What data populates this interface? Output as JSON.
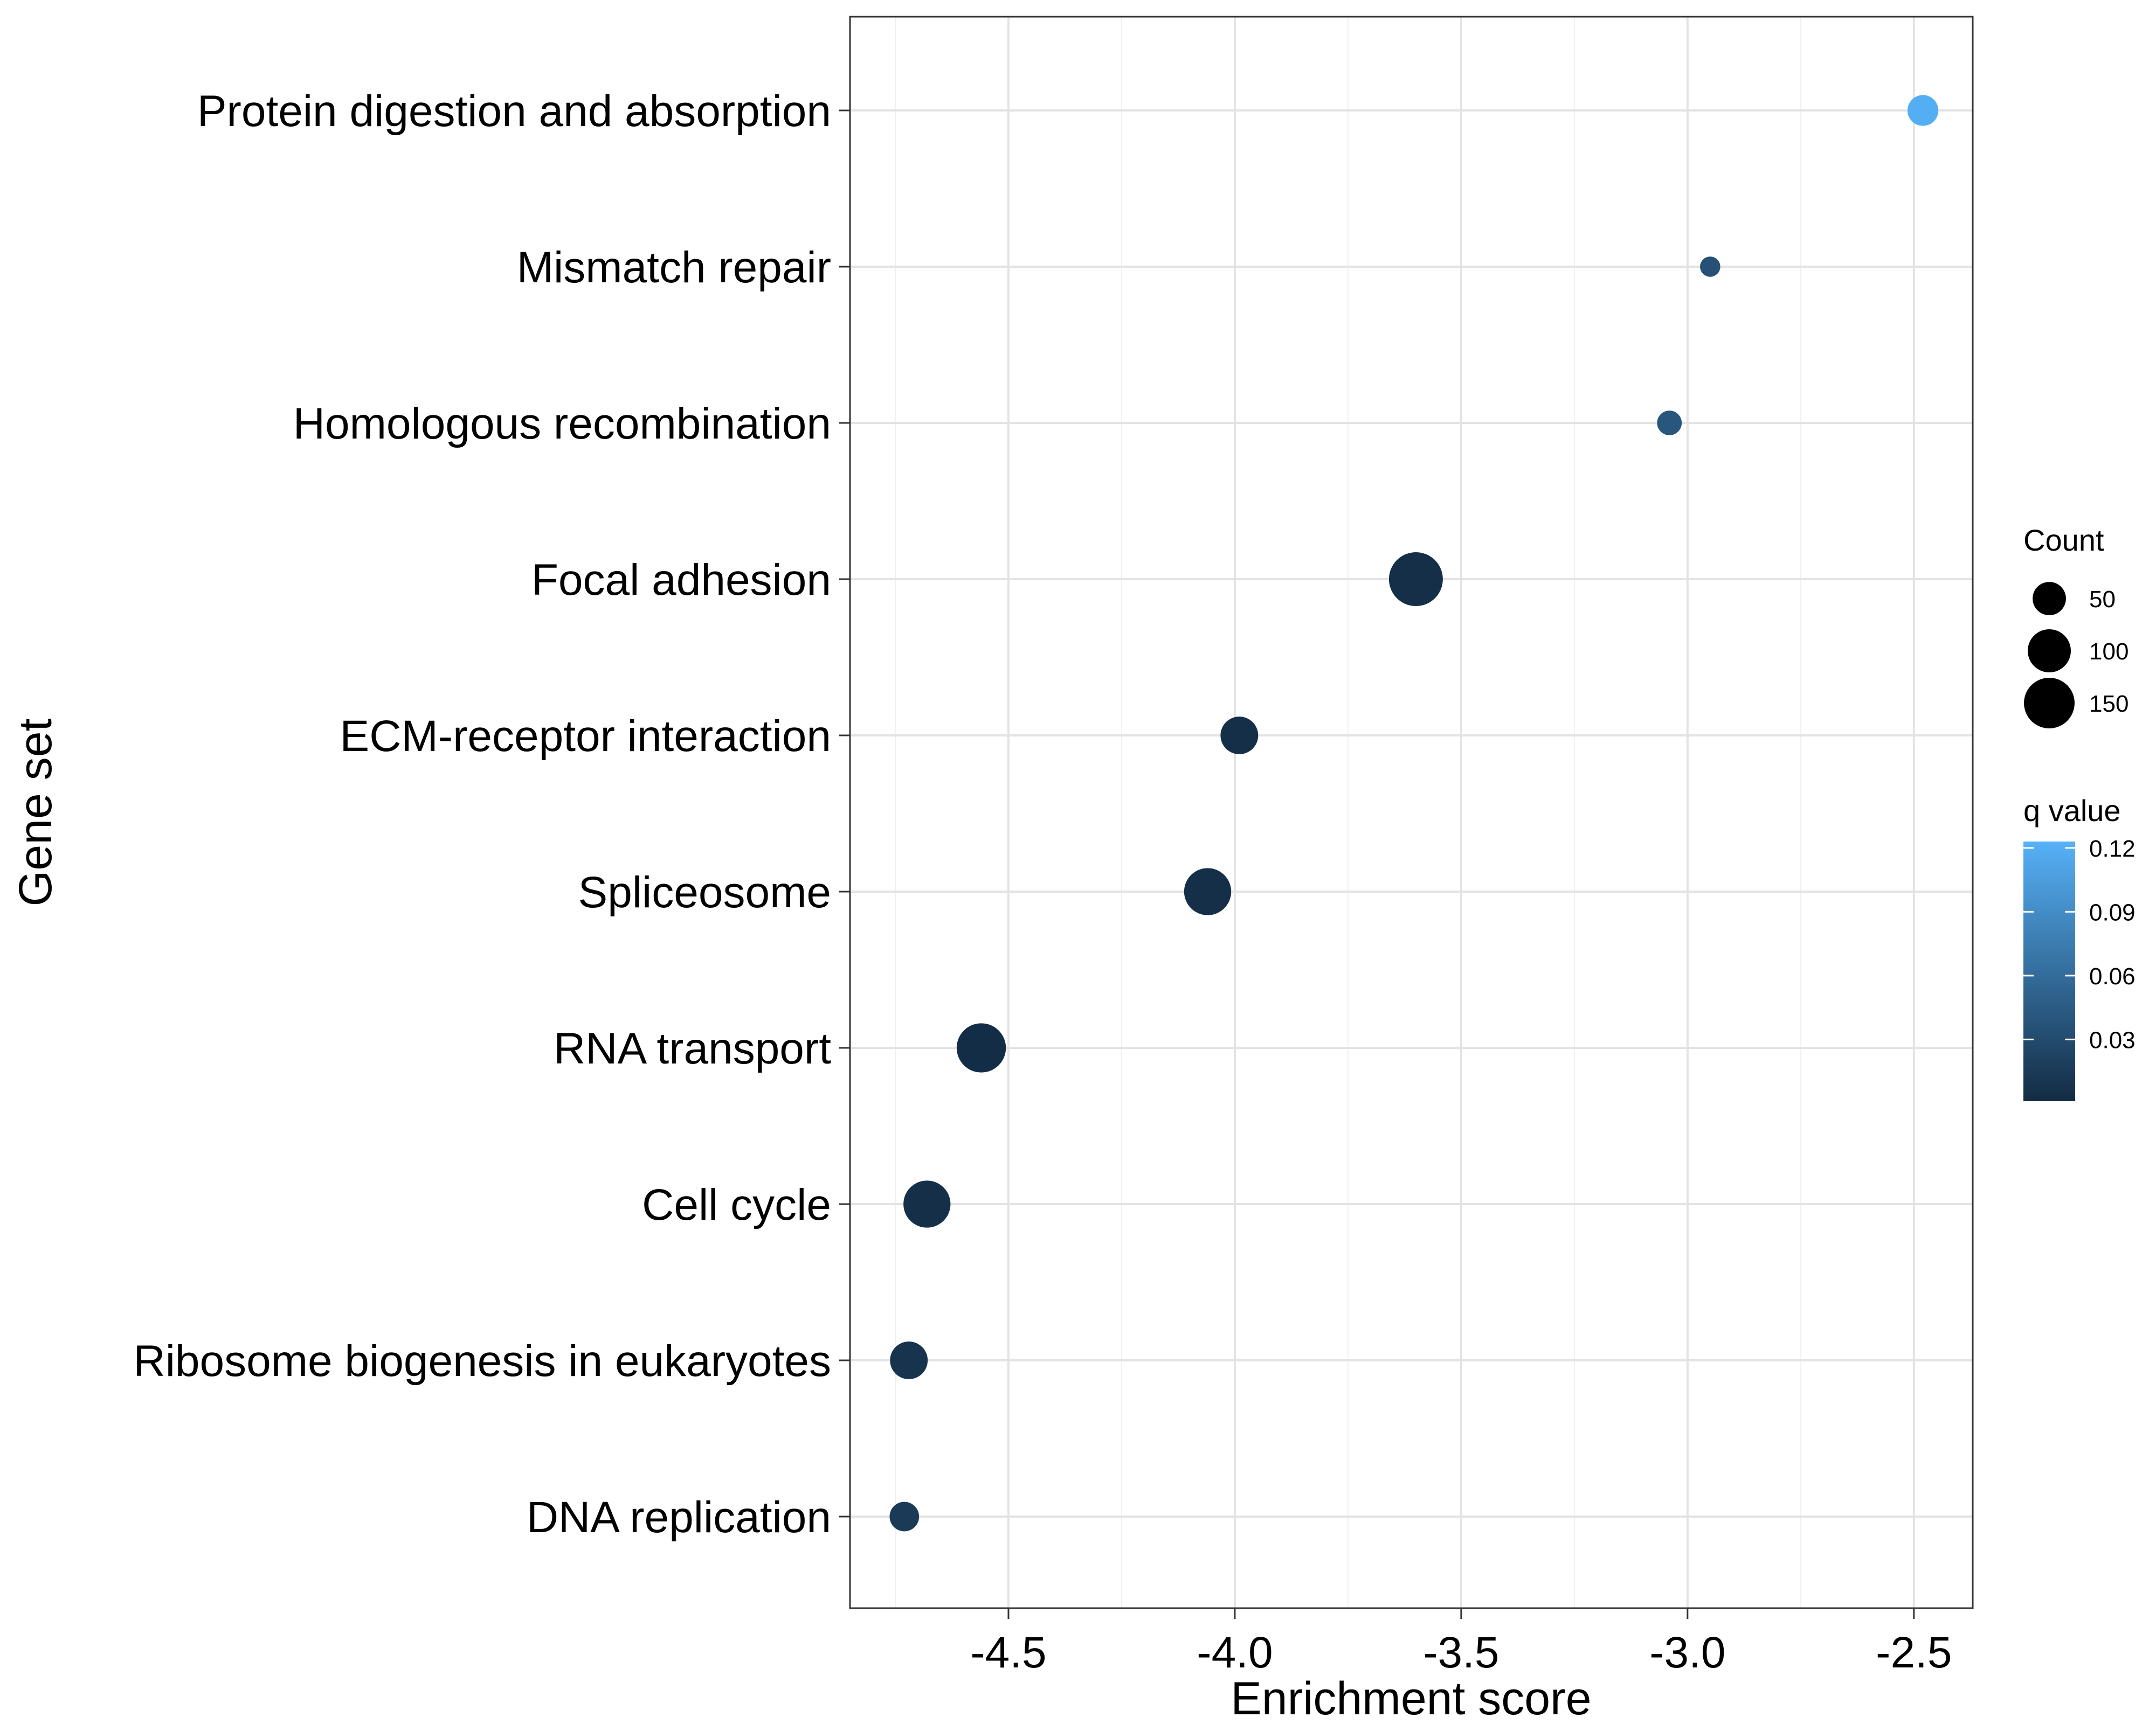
{
  "chart_data": {
    "type": "scatter",
    "xlabel": "Enrichment score",
    "ylabel": "Gene set",
    "xlim": [
      -4.85,
      -2.37
    ],
    "x_ticks": [
      "-4.5",
      "-4.0",
      "-3.5",
      "-3.0",
      "-2.5"
    ],
    "x_tick_values": [
      -4.5,
      -4.0,
      -3.5,
      -3.0,
      -2.5
    ],
    "grid": true,
    "categories": [
      "Protein digestion and absorption",
      "Mismatch repair",
      "Homologous recombination",
      "Focal adhesion",
      "ECM-receptor interaction",
      "Spliceosome",
      "RNA transport",
      "Cell cycle",
      "Ribosome biogenesis in eukaryotes",
      "DNA replication"
    ],
    "points": [
      {
        "gene_set": "Protein digestion and absorption",
        "enrichment_score": -2.48,
        "count": 40,
        "q_value": 0.12
      },
      {
        "gene_set": "Mismatch repair",
        "enrichment_score": -2.95,
        "count": 10,
        "q_value": 0.035
      },
      {
        "gene_set": "Homologous recombination",
        "enrichment_score": -3.04,
        "count": 20,
        "q_value": 0.04
      },
      {
        "gene_set": "Focal adhesion",
        "enrichment_score": -3.6,
        "count": 175,
        "q_value": 0.005
      },
      {
        "gene_set": "ECM-receptor interaction",
        "enrichment_score": -3.99,
        "count": 70,
        "q_value": 0.005
      },
      {
        "gene_set": "Spliceosome",
        "enrichment_score": -4.06,
        "count": 125,
        "q_value": 0.005
      },
      {
        "gene_set": "RNA transport",
        "enrichment_score": -4.56,
        "count": 140,
        "q_value": 0.003
      },
      {
        "gene_set": "Cell cycle",
        "enrichment_score": -4.68,
        "count": 125,
        "q_value": 0.005
      },
      {
        "gene_set": "Ribosome biogenesis in eukaryotes",
        "enrichment_score": -4.72,
        "count": 70,
        "q_value": 0.008
      },
      {
        "gene_set": "DNA replication",
        "enrichment_score": -4.73,
        "count": 35,
        "q_value": 0.015
      }
    ],
    "legend": {
      "placement": "right",
      "size_title": "Count",
      "size_breaks": [
        50,
        100,
        150
      ],
      "size_labels": [
        "50",
        "100",
        "150"
      ],
      "color_title": "q value",
      "color_breaks": [
        0.03,
        0.06,
        0.09,
        0.12
      ],
      "color_labels": [
        "0.03",
        "0.06",
        "0.09",
        "0.12"
      ],
      "color_range": [
        0.001,
        0.123
      ],
      "color_low": "#132b43",
      "color_high": "#56b1f7"
    }
  }
}
